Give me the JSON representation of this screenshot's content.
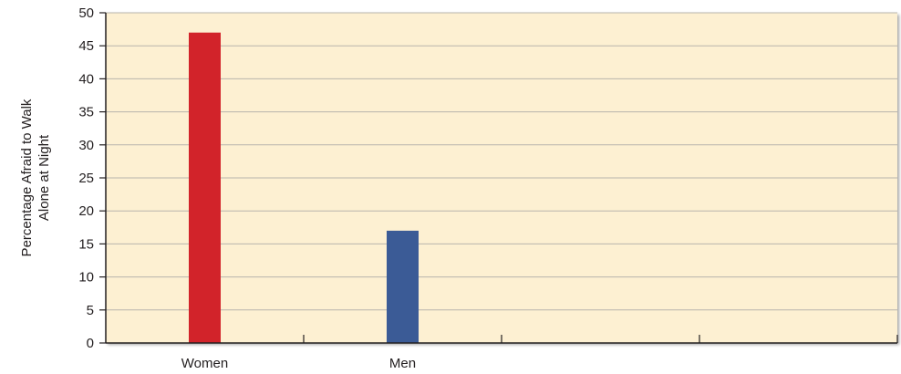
{
  "chart_data": {
    "type": "bar",
    "categories": [
      "Women",
      "Men"
    ],
    "values": [
      47,
      17
    ],
    "category_slots": 4,
    "ylabel_lines": [
      "Percentage Afraid to Walk",
      "Alone at Night"
    ],
    "xlabel": "",
    "ylim": [
      0,
      50
    ],
    "yticks": [
      0,
      5,
      10,
      15,
      20,
      25,
      30,
      35,
      40,
      45,
      50
    ],
    "grid": true,
    "legend": "none",
    "colors": {
      "bars": [
        "#d2232a",
        "#3b5b96"
      ],
      "plot_background": "#fdf0d2",
      "gridline": "#b8b4ac",
      "axis": "#231f20"
    }
  }
}
